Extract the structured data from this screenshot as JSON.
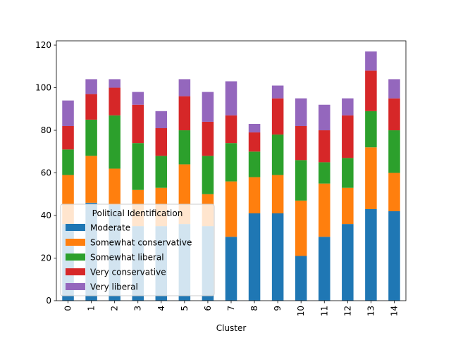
{
  "chart_data": {
    "type": "bar",
    "stacked": true,
    "title": "",
    "xlabel": "Cluster",
    "ylabel": "",
    "ylim": [
      0,
      122
    ],
    "yticks": [
      0,
      20,
      40,
      60,
      80,
      100,
      120
    ],
    "categories": [
      "0",
      "1",
      "2",
      "3",
      "4",
      "5",
      "6",
      "7",
      "8",
      "9",
      "10",
      "11",
      "12",
      "13",
      "14"
    ],
    "legend": {
      "title": "Political Identification",
      "placement": "lower-left"
    },
    "series": [
      {
        "name": "Moderate",
        "color": "#1f77b4",
        "values": [
          36,
          46,
          45,
          35,
          35,
          36,
          35,
          30,
          41,
          41,
          21,
          30,
          36,
          43,
          42
        ]
      },
      {
        "name": "Somewhat conservative",
        "color": "#ff7f0e",
        "values": [
          23,
          22,
          17,
          17,
          18,
          28,
          15,
          26,
          17,
          18,
          26,
          25,
          17,
          29,
          18
        ]
      },
      {
        "name": "Somewhat liberal",
        "color": "#2ca02c",
        "values": [
          12,
          17,
          25,
          22,
          15,
          16,
          18,
          18,
          12,
          19,
          19,
          10,
          14,
          17,
          20
        ]
      },
      {
        "name": "Very conservative",
        "color": "#d62728",
        "values": [
          11,
          12,
          13,
          18,
          13,
          16,
          16,
          13,
          9,
          17,
          16,
          15,
          20,
          19,
          15
        ]
      },
      {
        "name": "Very liberal",
        "color": "#9467bd",
        "values": [
          12,
          7,
          4,
          6,
          8,
          8,
          14,
          16,
          4,
          6,
          13,
          12,
          8,
          9,
          9
        ]
      }
    ]
  }
}
